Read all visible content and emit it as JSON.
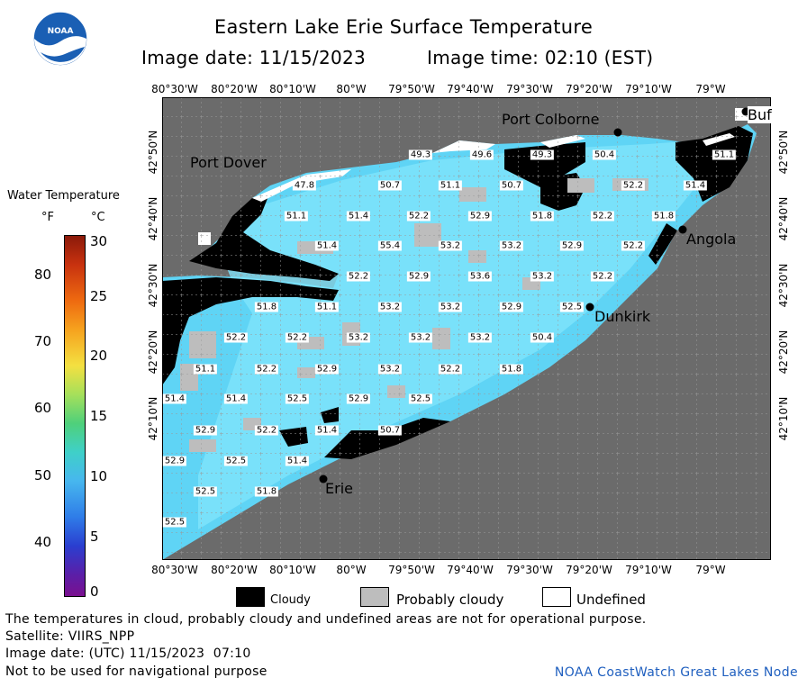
{
  "header": {
    "title": "Eastern Lake Erie Surface Temperature",
    "image_date": "Image date: 11/15/2023",
    "image_time": "Image time: 02:10 (EST)",
    "logo_text": "NOAA"
  },
  "map": {
    "top_lon_labels": [
      "80°30'W",
      "80°20'W",
      "80°10'W",
      "80°W",
      "79°50'W",
      "79°40'W",
      "79°30'W",
      "79°20'W",
      "79°10'W",
      "79°W"
    ],
    "bottom_lon_labels": [
      "80°30'W",
      "80°20'W",
      "80°10'W",
      "80°W",
      "79°50'W",
      "79°40'W",
      "79°30'W",
      "79°20'W",
      "79°10'W",
      "79°W"
    ],
    "left_lat_labels": [
      "42°50'N",
      "42°40'N",
      "42°30'N",
      "42°20'N",
      "42°10'N"
    ],
    "right_lat_labels": [
      "42°50'N",
      "42°40'N",
      "42°30'N",
      "42°20'N",
      "42°10'N"
    ],
    "places": {
      "port_dover": "Port Dover",
      "port_colborne": "Port Colborne",
      "buffalo": "Buf",
      "angola": "Angola",
      "dunkirk": "Dunkirk",
      "erie": "Erie"
    },
    "temperature_labels": [
      "49.3",
      "49.6",
      "49.3",
      "50.4",
      "51.1",
      "47.8",
      "50.7",
      "51.1",
      "50.7",
      "52.2",
      "51.4",
      "51.1",
      "51.4",
      "52.2",
      "52.9",
      "51.8",
      "52.2",
      "51.8",
      "51.4",
      "55.4",
      "53.2",
      "53.2",
      "52.9",
      "52.2",
      "52.2",
      "52.9",
      "53.6",
      "53.2",
      "52.2",
      "51.8",
      "51.1",
      "53.2",
      "53.2",
      "52.9",
      "52.5",
      "52.2",
      "52.2",
      "53.2",
      "53.2",
      "53.2",
      "50.4",
      "51.1",
      "52.2",
      "52.9",
      "53.2",
      "52.2",
      "51.8",
      "51.4",
      "51.4",
      "52.5",
      "52.9",
      "52.5",
      "52.9",
      "52.2",
      "51.4",
      "50.7",
      "52.9",
      "52.5",
      "51.4",
      "52.5",
      "51.8",
      "52.5"
    ]
  },
  "legend": {
    "title": "Water Temperature",
    "unit_f": "°F",
    "unit_c": "°C",
    "f_ticks": [
      "80",
      "70",
      "60",
      "50",
      "40"
    ],
    "c_ticks": [
      "30",
      "25",
      "20",
      "15",
      "10",
      "5",
      "0"
    ]
  },
  "key": {
    "cloudy": "Cloudy",
    "probably_cloudy": "Probably cloudy",
    "undefined": "Undefined",
    "cloudy_color": "#000000",
    "probably_cloudy_color": "#bdbdbd",
    "undefined_color": "#ffffff"
  },
  "footer": {
    "note": "The temperatures in cloud, probably cloudy and undefined areas are not for operational purpose.",
    "satellite": "Satellite: VIIRS_NPP",
    "utc_date": "Image date: (UTC) 11/15/2023  07:10",
    "warning": "Not to be used for navigational purpose",
    "credit": "NOAA CoastWatch Great Lakes Node"
  }
}
